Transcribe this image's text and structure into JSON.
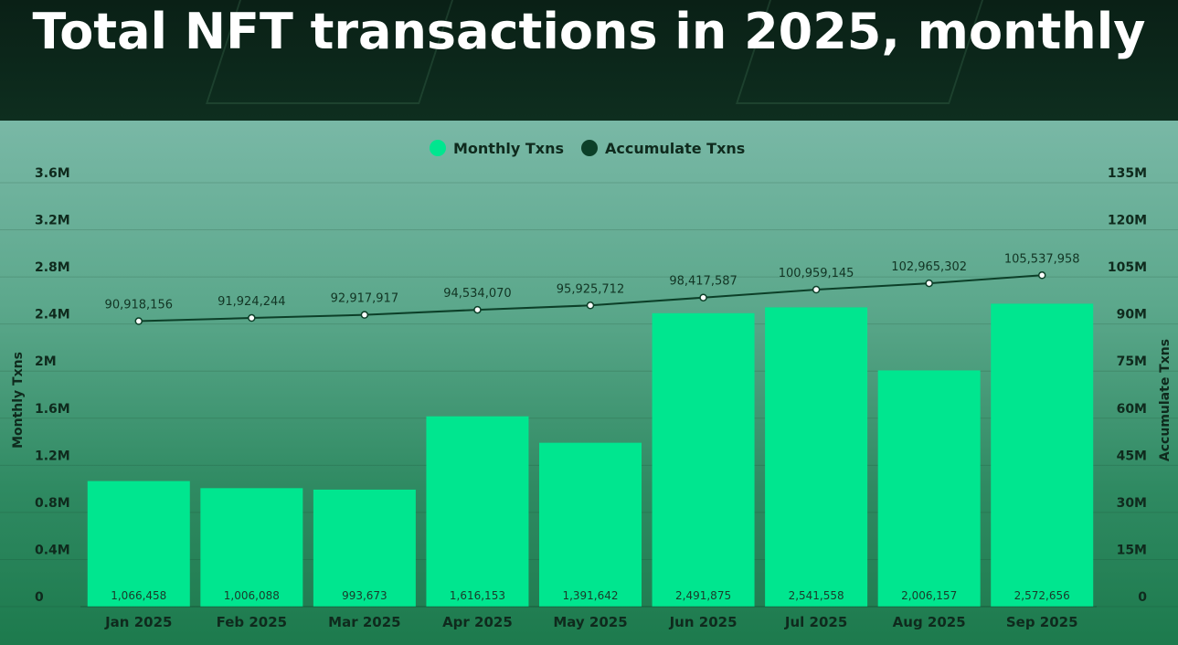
{
  "header": {
    "title": "Total NFT transactions in 2025, monthly"
  },
  "chart_data": {
    "type": "bar+line",
    "title": "Total NFT transactions in 2025, monthly",
    "categories": [
      "Jan 2025",
      "Feb 2025",
      "Mar 2025",
      "Apr 2025",
      "May 2025",
      "Jun 2025",
      "Jul 2025",
      "Aug 2025",
      "Sep 2025"
    ],
    "series": [
      {
        "name": "Monthly Txns",
        "type": "bar",
        "axis": "left",
        "color": "#00e68f",
        "values": [
          1066458,
          1006088,
          993673,
          1616153,
          1391642,
          2491875,
          2541558,
          2006157,
          2572656
        ],
        "labels": [
          "1,066,458",
          "1,006,088",
          "993,673",
          "1,616,153",
          "1,391,642",
          "2,491,875",
          "2,541,558",
          "2,006,157",
          "2,572,656"
        ]
      },
      {
        "name": "Accumulate Txns",
        "type": "line",
        "axis": "right",
        "color": "#0c3f28",
        "values": [
          90918156,
          91924244,
          92917917,
          94534070,
          95925712,
          98417587,
          100959145,
          102965302,
          105537958
        ],
        "labels": [
          "90,918,156",
          "91,924,244",
          "92,917,917",
          "94,534,070",
          "95,925,712",
          "98,417,587",
          "100,959,145",
          "102,965,302",
          "105,537,958"
        ]
      }
    ],
    "ylabel": "Monthly Txns",
    "ylabel_right": "Accumulate Txns",
    "ylim": [
      0,
      3600000
    ],
    "ylim_right": [
      0,
      135000000
    ],
    "yticks": [
      "0",
      "0.4M",
      "0.8M",
      "1.2M",
      "1.6M",
      "2M",
      "2.4M",
      "2.8M",
      "3.2M",
      "3.6M"
    ],
    "yticks_right": [
      "0",
      "15M",
      "30M",
      "45M",
      "60M",
      "75M",
      "90M",
      "105M",
      "120M",
      "135M"
    ],
    "legend_position": "top-center",
    "grid": true
  }
}
